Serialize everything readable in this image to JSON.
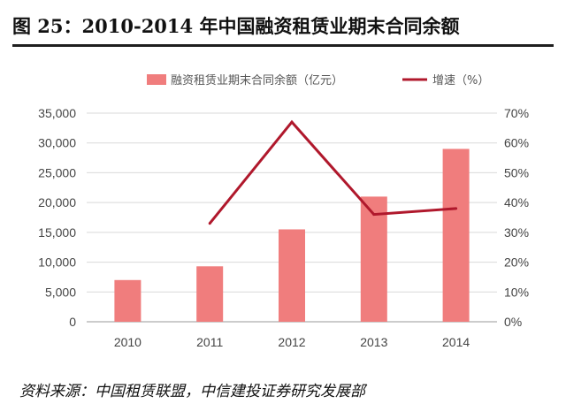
{
  "title": "图 25：2010-2014 年中国融资租赁业期末合同余额",
  "source": "资料来源：中国租赁联盟，中信建投证券研究发展部",
  "colors": {
    "bar": "#f07d7d",
    "line": "#b0182c",
    "axis": "#999999",
    "grid": "#d9d9d9"
  },
  "chart_data": {
    "type": "bar",
    "categories": [
      "2010",
      "2011",
      "2012",
      "2013",
      "2014"
    ],
    "series": [
      {
        "name": "融资租赁业期末合同余额（亿元）",
        "type": "bar",
        "axis": "left",
        "values": [
          7000,
          9300,
          15500,
          21000,
          29000
        ]
      },
      {
        "name": "增速（%）",
        "type": "line",
        "axis": "right",
        "values": [
          null,
          33,
          67,
          36,
          38
        ]
      }
    ],
    "y_left": {
      "min": 0,
      "max": 35000,
      "ticks": [
        "0",
        "5,000",
        "10,000",
        "15,000",
        "20,000",
        "25,000",
        "30,000",
        "35,000"
      ]
    },
    "y_right": {
      "min": 0,
      "max": 70,
      "ticks": [
        "0%",
        "10%",
        "20%",
        "30%",
        "40%",
        "50%",
        "60%",
        "70%"
      ]
    },
    "grid": true,
    "legend": "top"
  }
}
